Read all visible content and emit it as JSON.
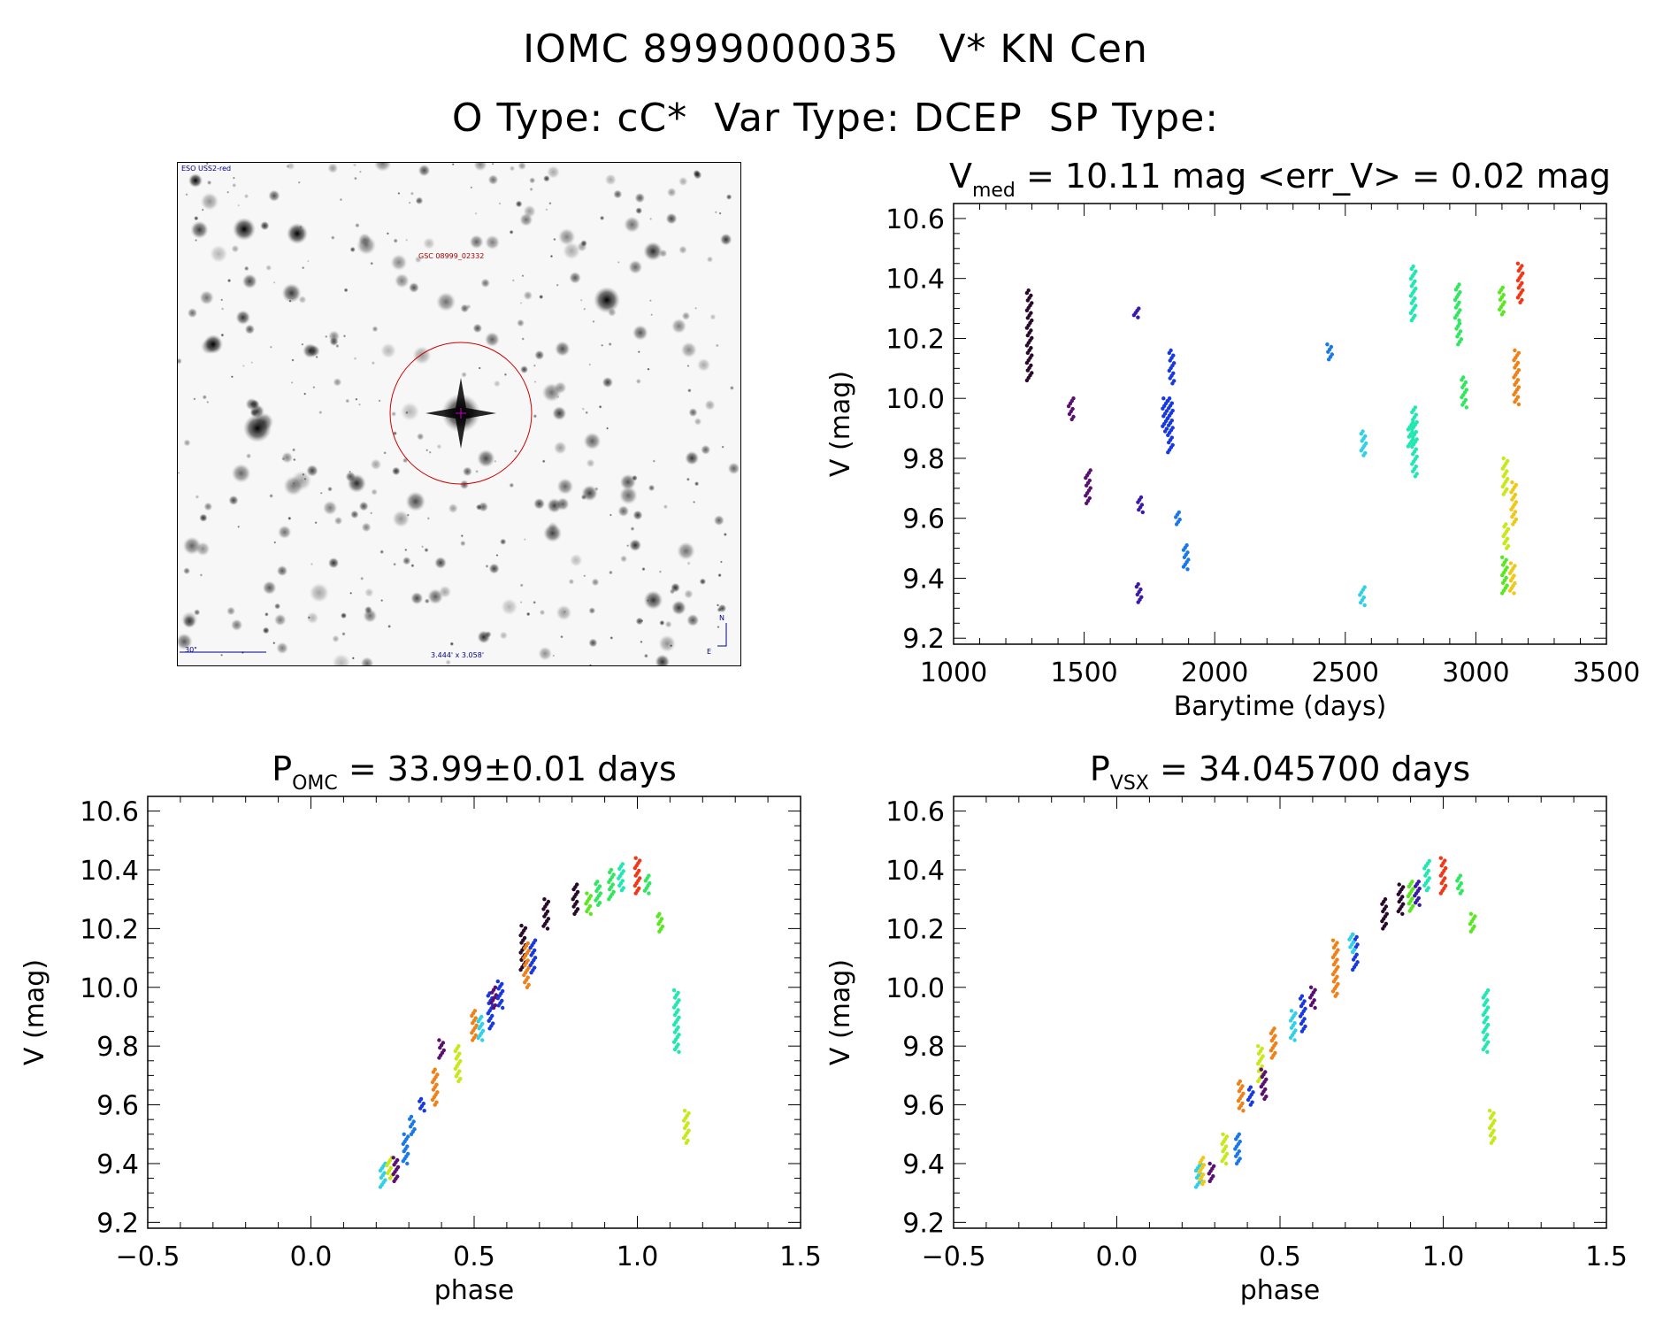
{
  "header": {
    "line1": "IOMC 8999000035   V* KN Cen",
    "line2": "O Type: cC*  Var Type: DCEP  SP Type:"
  },
  "finder": {
    "survey": "ESO USS2-red",
    "target_label": "GSC 08999_02332",
    "scale_label": "30\"",
    "fov_label": "3.444' x 3.058'",
    "north": "N",
    "east": "E"
  },
  "colors": {
    "palette": [
      "#2a0a2a",
      "#5a1070",
      "#3a1aa8",
      "#1838e0",
      "#1a78e8",
      "#30d0e8",
      "#20e8b0",
      "#30e860",
      "#58e820",
      "#c8e818",
      "#f0c818",
      "#f08018",
      "#f03818"
    ]
  },
  "chart_data": [
    {
      "type": "scatter",
      "id": "lightcurve",
      "title_main": "V",
      "title_sub": "med",
      "title_rest": " = 10.11 mag <err_V> = 0.02 mag",
      "xlabel": "Barytime (days)",
      "ylabel": "V (mag)",
      "xlim": [
        1000,
        3500
      ],
      "ylim": [
        10.65,
        9.18
      ],
      "xticks": [
        1000,
        1500,
        2000,
        2500,
        3000,
        3500
      ],
      "yticks": [
        9.2,
        9.4,
        9.6,
        9.8,
        10.0,
        10.2,
        10.4,
        10.6
      ],
      "clusters": [
        {
          "x": 1290,
          "y": [
            10.06,
            10.36
          ],
          "c": 0
        },
        {
          "x": 1450,
          "y": [
            9.93,
            10.0
          ],
          "c": 1
        },
        {
          "x": 1515,
          "y": [
            9.65,
            9.76
          ],
          "c": 1
        },
        {
          "x": 1700,
          "y": [
            10.27,
            10.3
          ],
          "c": 2
        },
        {
          "x": 1710,
          "y": [
            9.32,
            9.38
          ],
          "c": 2
        },
        {
          "x": 1715,
          "y": [
            9.62,
            9.67
          ],
          "c": 2
        },
        {
          "x": 1810,
          "y": [
            9.89,
            10.0
          ],
          "c": 3
        },
        {
          "x": 1830,
          "y": [
            9.82,
            10.0
          ],
          "c": 3
        },
        {
          "x": 1835,
          "y": [
            10.05,
            10.16
          ],
          "c": 3
        },
        {
          "x": 1860,
          "y": [
            9.58,
            9.62
          ],
          "c": 4
        },
        {
          "x": 1890,
          "y": [
            9.43,
            9.51
          ],
          "c": 4
        },
        {
          "x": 2440,
          "y": [
            10.13,
            10.18
          ],
          "c": 4
        },
        {
          "x": 2565,
          "y": [
            9.31,
            9.37
          ],
          "c": 5
        },
        {
          "x": 2570,
          "y": [
            9.81,
            9.89
          ],
          "c": 5
        },
        {
          "x": 2750,
          "y": [
            9.84,
            9.92
          ],
          "c": 6
        },
        {
          "x": 2765,
          "y": [
            9.74,
            9.97
          ],
          "c": 6
        },
        {
          "x": 2760,
          "y": [
            10.26,
            10.44
          ],
          "c": 6
        },
        {
          "x": 2930,
          "y": [
            10.26,
            10.38
          ],
          "c": 7
        },
        {
          "x": 2935,
          "y": [
            10.18,
            10.25
          ],
          "c": 7
        },
        {
          "x": 2955,
          "y": [
            9.97,
            10.07
          ],
          "c": 7
        },
        {
          "x": 3100,
          "y": [
            10.28,
            10.37
          ],
          "c": 8
        },
        {
          "x": 3110,
          "y": [
            9.35,
            9.47
          ],
          "c": 8
        },
        {
          "x": 3115,
          "y": [
            9.5,
            9.58
          ],
          "c": 9
        },
        {
          "x": 3112,
          "y": [
            9.68,
            9.8
          ],
          "c": 9
        },
        {
          "x": 3140,
          "y": [
            9.35,
            9.45
          ],
          "c": 10
        },
        {
          "x": 3145,
          "y": [
            9.58,
            9.72
          ],
          "c": 10
        },
        {
          "x": 3155,
          "y": [
            9.98,
            10.16
          ],
          "c": 11
        },
        {
          "x": 3170,
          "y": [
            10.32,
            10.45
          ],
          "c": 12
        }
      ]
    },
    {
      "type": "scatter",
      "id": "phase_omc",
      "title_main": "P",
      "title_sub": "OMC",
      "title_rest": " = 33.99±0.01 days",
      "xlabel": "phase",
      "ylabel": "V (mag)",
      "xlim": [
        -0.5,
        1.5
      ],
      "ylim": [
        10.65,
        9.18
      ],
      "xticks": [
        -0.5,
        0.0,
        0.5,
        1.0,
        1.5
      ],
      "yticks": [
        9.2,
        9.4,
        9.6,
        9.8,
        10.0,
        10.2,
        10.4,
        10.6
      ],
      "xtick_labels": [
        "−0.5",
        "0.0",
        "0.5",
        "1.0",
        "1.5"
      ],
      "clusters": [
        {
          "x": 0.22,
          "y": [
            9.32,
            9.4
          ],
          "c": 5
        },
        {
          "x": 0.24,
          "y": [
            9.35,
            9.42
          ],
          "c": 9
        },
        {
          "x": 0.26,
          "y": [
            9.34,
            9.42
          ],
          "c": 1
        },
        {
          "x": 0.29,
          "y": [
            9.4,
            9.5
          ],
          "c": 4
        },
        {
          "x": 0.31,
          "y": [
            9.5,
            9.56
          ],
          "c": 4
        },
        {
          "x": 0.34,
          "y": [
            9.58,
            9.62
          ],
          "c": 3
        },
        {
          "x": 0.38,
          "y": [
            9.6,
            9.72
          ],
          "c": 11
        },
        {
          "x": 0.4,
          "y": [
            9.76,
            9.82
          ],
          "c": 1
        },
        {
          "x": 0.45,
          "y": [
            9.68,
            9.8
          ],
          "c": 9
        },
        {
          "x": 0.5,
          "y": [
            9.82,
            9.92
          ],
          "c": 11
        },
        {
          "x": 0.52,
          "y": [
            9.82,
            9.9
          ],
          "c": 5
        },
        {
          "x": 0.55,
          "y": [
            9.86,
            9.98
          ],
          "c": 3
        },
        {
          "x": 0.58,
          "y": [
            9.93,
            10.02
          ],
          "c": 3
        },
        {
          "x": 0.56,
          "y": [
            9.93,
            10.0
          ],
          "c": 1
        },
        {
          "x": 0.65,
          "y": [
            10.06,
            10.21
          ],
          "c": 0
        },
        {
          "x": 0.66,
          "y": [
            10.0,
            10.15
          ],
          "c": 11
        },
        {
          "x": 0.68,
          "y": [
            10.05,
            10.16
          ],
          "c": 3
        },
        {
          "x": 0.72,
          "y": [
            10.2,
            10.3
          ],
          "c": 0
        },
        {
          "x": 0.81,
          "y": [
            10.25,
            10.35
          ],
          "c": 0
        },
        {
          "x": 0.85,
          "y": [
            10.25,
            10.32
          ],
          "c": 8
        },
        {
          "x": 0.88,
          "y": [
            10.28,
            10.36
          ],
          "c": 7
        },
        {
          "x": 0.92,
          "y": [
            10.3,
            10.4
          ],
          "c": 7
        },
        {
          "x": 0.95,
          "y": [
            10.33,
            10.42
          ],
          "c": 6
        },
        {
          "x": 1.0,
          "y": [
            10.32,
            10.44
          ],
          "c": 12
        },
        {
          "x": 1.03,
          "y": [
            10.32,
            10.38
          ],
          "c": 7
        },
        {
          "x": 1.07,
          "y": [
            10.19,
            10.25
          ],
          "c": 8
        },
        {
          "x": 1.12,
          "y": [
            9.78,
            9.99
          ],
          "c": 6
        },
        {
          "x": 1.15,
          "y": [
            9.47,
            9.58
          ],
          "c": 9
        }
      ]
    },
    {
      "type": "scatter",
      "id": "phase_vsx",
      "title_main": "P",
      "title_sub": "VSX",
      "title_rest": " = 34.045700 days",
      "xlabel": "phase",
      "ylabel": "V (mag)",
      "xlim": [
        -0.5,
        1.5
      ],
      "ylim": [
        10.65,
        9.18
      ],
      "xticks": [
        -0.5,
        0.0,
        0.5,
        1.0,
        1.5
      ],
      "yticks": [
        9.2,
        9.4,
        9.6,
        9.8,
        10.0,
        10.2,
        10.4,
        10.6
      ],
      "xtick_labels": [
        "−0.5",
        "0.0",
        "0.5",
        "1.0",
        "1.5"
      ],
      "clusters": [
        {
          "x": 0.25,
          "y": [
            9.32,
            9.4
          ],
          "c": 5
        },
        {
          "x": 0.26,
          "y": [
            9.33,
            9.42
          ],
          "c": 10
        },
        {
          "x": 0.29,
          "y": [
            9.34,
            9.4
          ],
          "c": 1
        },
        {
          "x": 0.33,
          "y": [
            9.4,
            9.5
          ],
          "c": 9
        },
        {
          "x": 0.37,
          "y": [
            9.4,
            9.5
          ],
          "c": 4
        },
        {
          "x": 0.38,
          "y": [
            9.58,
            9.68
          ],
          "c": 11
        },
        {
          "x": 0.41,
          "y": [
            9.6,
            9.66
          ],
          "c": 3
        },
        {
          "x": 0.44,
          "y": [
            9.68,
            9.8
          ],
          "c": 9
        },
        {
          "x": 0.45,
          "y": [
            9.62,
            9.72
          ],
          "c": 1
        },
        {
          "x": 0.48,
          "y": [
            9.76,
            9.86
          ],
          "c": 11
        },
        {
          "x": 0.54,
          "y": [
            9.82,
            9.92
          ],
          "c": 5
        },
        {
          "x": 0.57,
          "y": [
            9.85,
            9.97
          ],
          "c": 3
        },
        {
          "x": 0.6,
          "y": [
            9.93,
            10.0
          ],
          "c": 1
        },
        {
          "x": 0.67,
          "y": [
            9.97,
            10.16
          ],
          "c": 11
        },
        {
          "x": 0.73,
          "y": [
            10.06,
            10.18
          ],
          "c": 3
        },
        {
          "x": 0.72,
          "y": [
            10.12,
            10.18
          ],
          "c": 5
        },
        {
          "x": 0.82,
          "y": [
            10.2,
            10.3
          ],
          "c": 0
        },
        {
          "x": 0.87,
          "y": [
            10.25,
            10.35
          ],
          "c": 0
        },
        {
          "x": 0.9,
          "y": [
            10.26,
            10.36
          ],
          "c": 8
        },
        {
          "x": 0.92,
          "y": [
            10.28,
            10.36
          ],
          "c": 2
        },
        {
          "x": 0.95,
          "y": [
            10.33,
            10.43
          ],
          "c": 6
        },
        {
          "x": 1.0,
          "y": [
            10.32,
            10.44
          ],
          "c": 12
        },
        {
          "x": 1.05,
          "y": [
            10.32,
            10.38
          ],
          "c": 7
        },
        {
          "x": 1.09,
          "y": [
            10.19,
            10.25
          ],
          "c": 8
        },
        {
          "x": 1.13,
          "y": [
            9.78,
            9.99
          ],
          "c": 6
        },
        {
          "x": 1.15,
          "y": [
            9.47,
            9.58
          ],
          "c": 9
        }
      ]
    }
  ]
}
